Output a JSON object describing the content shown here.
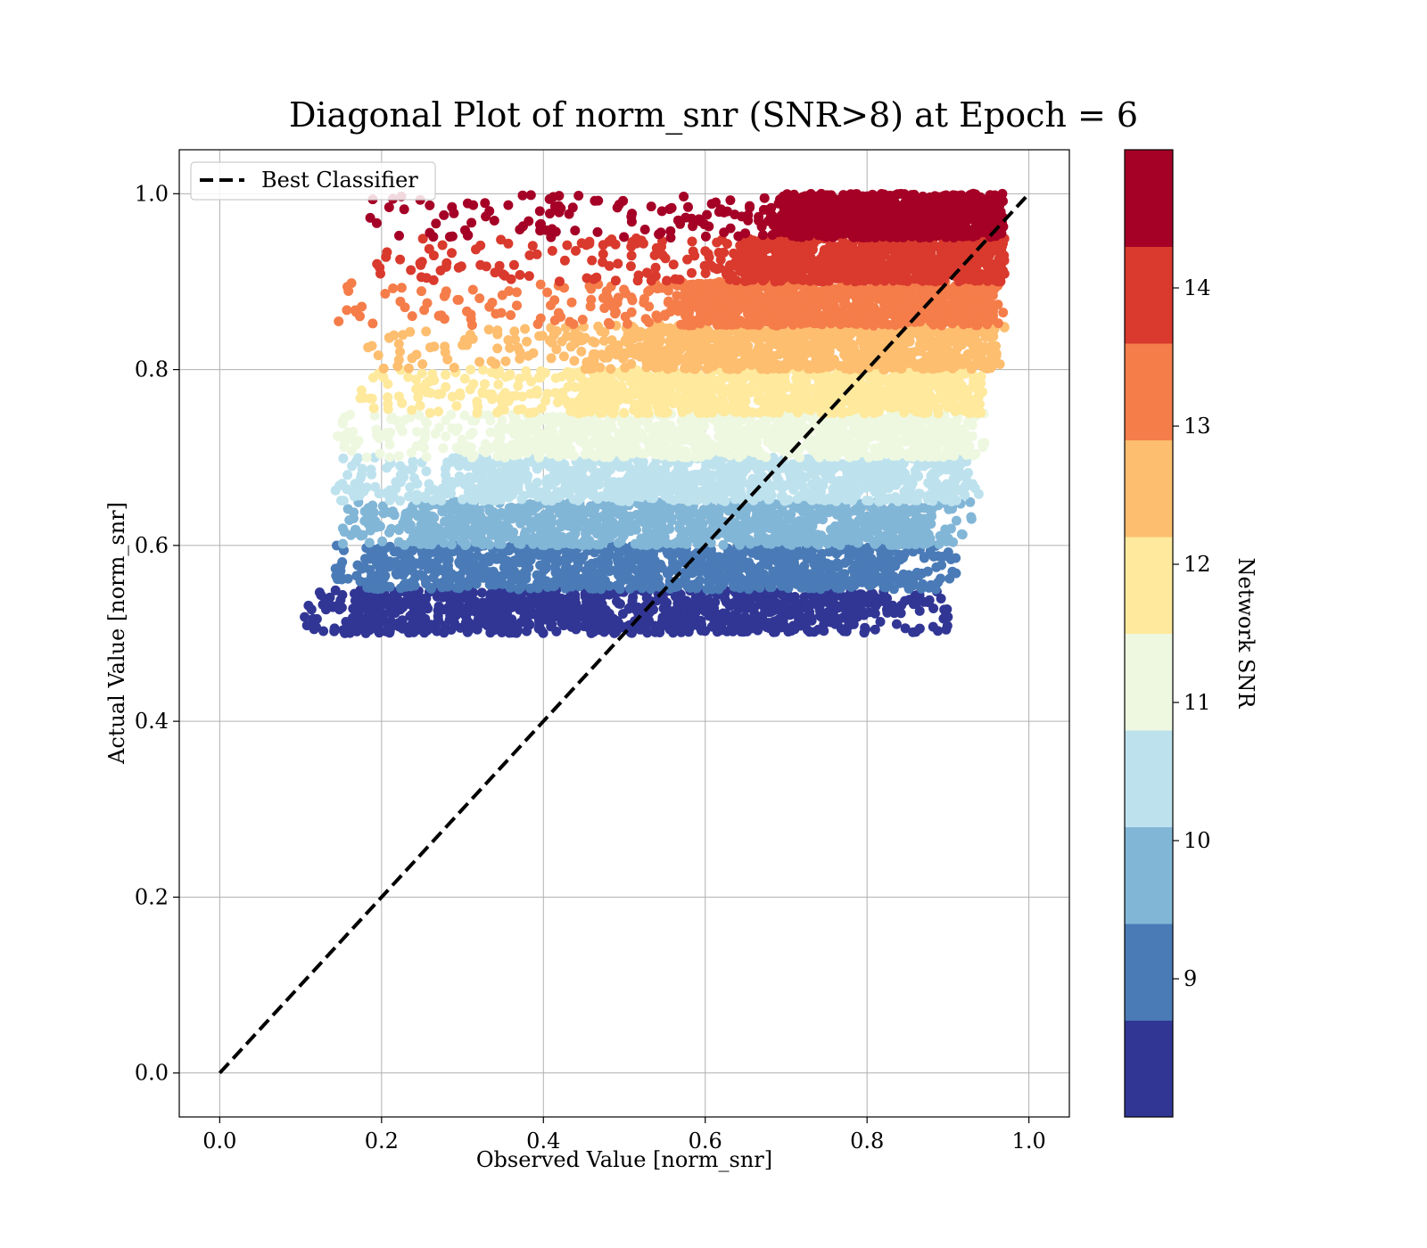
{
  "chart_data": {
    "type": "scatter",
    "title": "Diagonal Plot of norm_snr (SNR>8) at Epoch = 6",
    "xlabel": "Observed Value [norm_snr]",
    "ylabel": "Actual Value [norm_snr]",
    "xlim": [
      -0.05,
      1.05
    ],
    "ylim": [
      -0.05,
      1.05
    ],
    "xticks": [
      "0.0",
      "0.2",
      "0.4",
      "0.6",
      "0.8",
      "1.0"
    ],
    "yticks": [
      "0.0",
      "0.2",
      "0.4",
      "0.6",
      "0.8",
      "1.0"
    ],
    "grid": true,
    "legend": {
      "position": "upper-left",
      "entries": [
        "Best Classifier"
      ]
    },
    "reference_line": {
      "name": "Best Classifier",
      "style": "dashed",
      "color": "#000000",
      "x": [
        0,
        1
      ],
      "y": [
        0,
        1
      ]
    },
    "colorbar": {
      "label": "Network SNR",
      "min": 8,
      "max": 15,
      "ticks": [
        "9",
        "10",
        "11",
        "12",
        "13",
        "14"
      ],
      "colors": [
        "#313695",
        "#4a7bb7",
        "#82b6d7",
        "#bde2ee",
        "#eef8e0",
        "#fee99d",
        "#fdbe6f",
        "#f57d4a",
        "#d93a2d",
        "#a50026"
      ]
    },
    "bands": [
      {
        "y": [
          0.5,
          0.55
        ],
        "x_core": [
          0.17,
          0.78
        ],
        "x_span": [
          0.1,
          0.9
        ]
      },
      {
        "y": [
          0.55,
          0.6
        ],
        "x_core": [
          0.2,
          0.82
        ],
        "x_span": [
          0.14,
          0.91
        ]
      },
      {
        "y": [
          0.6,
          0.65
        ],
        "x_core": [
          0.26,
          0.87
        ],
        "x_span": [
          0.15,
          0.93
        ]
      },
      {
        "y": [
          0.65,
          0.7
        ],
        "x_core": [
          0.33,
          0.92
        ],
        "x_span": [
          0.14,
          0.94
        ]
      },
      {
        "y": [
          0.7,
          0.75
        ],
        "x_core": [
          0.38,
          0.93
        ],
        "x_span": [
          0.14,
          0.95
        ]
      },
      {
        "y": [
          0.75,
          0.8
        ],
        "x_core": [
          0.45,
          0.94
        ],
        "x_span": [
          0.17,
          0.95
        ]
      },
      {
        "y": [
          0.8,
          0.85
        ],
        "x_core": [
          0.52,
          0.96
        ],
        "x_span": [
          0.17,
          0.97
        ]
      },
      {
        "y": [
          0.85,
          0.9
        ],
        "x_core": [
          0.58,
          0.96
        ],
        "x_span": [
          0.14,
          0.97
        ]
      },
      {
        "y": [
          0.9,
          0.95
        ],
        "x_core": [
          0.65,
          0.97
        ],
        "x_span": [
          0.18,
          0.97
        ]
      },
      {
        "y": [
          0.95,
          1.0
        ],
        "x_core": [
          0.7,
          0.97
        ],
        "x_span": [
          0.17,
          0.97
        ]
      }
    ]
  }
}
